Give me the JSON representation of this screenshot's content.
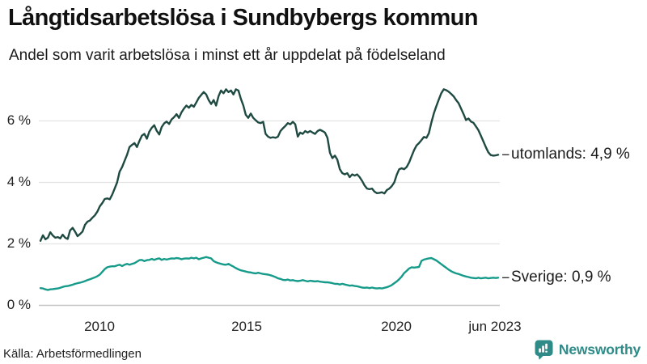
{
  "header": {
    "title": "Långtidsarbetslösa i Sundbybergs kommun",
    "subtitle": "Andel som varit arbetslösa i minst ett år uppdelat på födelseland"
  },
  "footer": {
    "source": "Källa: Arbetsförmedlingen",
    "brand": "Newsworthy"
  },
  "colors": {
    "utomlands_line": "#1f4a42",
    "sverige_line": "#169b8a",
    "gridline": "#e3e3e3",
    "baseline": "#c4c4c4",
    "text": "#1a1a1a",
    "brand_teal": "#2e8b88"
  },
  "chart_data": {
    "type": "line",
    "title": "Långtidsarbetslösa i Sundbybergs kommun",
    "subtitle": "Andel som varit arbetslösa i minst ett år uppdelat på födelseland",
    "unit": "%",
    "frequency": "monthly",
    "x_domain": [
      "2008-01",
      "2023-06"
    ],
    "ylim": [
      0,
      7.3
    ],
    "grid": "horizontal",
    "legend_position": "end-of-line",
    "x_ticks": [
      {
        "label": "2010"
      },
      {
        "label": "2015"
      },
      {
        "label": "2020"
      },
      {
        "label": "jun 2023"
      }
    ],
    "y_ticks": [
      {
        "label": "0 %",
        "value": 0
      },
      {
        "label": "2 %",
        "value": 2
      },
      {
        "label": "4 %",
        "value": 4
      },
      {
        "label": "6 %",
        "value": 6
      }
    ],
    "series": [
      {
        "name": "utomlands",
        "end_label": "utomlands: 4,9 %",
        "last_value": 4.9,
        "color": "#1f4a42",
        "values": [
          2.1,
          2.28,
          2.15,
          2.2,
          2.38,
          2.27,
          2.2,
          2.22,
          2.18,
          2.3,
          2.2,
          2.16,
          2.44,
          2.52,
          2.4,
          2.25,
          2.32,
          2.4,
          2.62,
          2.72,
          2.76,
          2.85,
          2.93,
          3.05,
          3.22,
          3.33,
          3.46,
          3.48,
          3.45,
          3.6,
          3.8,
          4.0,
          4.35,
          4.5,
          4.7,
          4.9,
          5.15,
          5.22,
          5.28,
          5.15,
          5.35,
          5.52,
          5.58,
          5.42,
          5.65,
          5.78,
          5.86,
          5.68,
          5.56,
          5.8,
          5.92,
          5.98,
          5.9,
          6.05,
          6.12,
          6.22,
          6.1,
          6.28,
          6.4,
          6.5,
          6.43,
          6.52,
          6.46,
          6.6,
          6.75,
          6.85,
          6.94,
          6.86,
          6.68,
          6.55,
          6.68,
          6.5,
          6.81,
          6.99,
          6.9,
          7.03,
          6.94,
          6.99,
          6.86,
          7.03,
          6.99,
          6.72,
          6.5,
          6.2,
          6.1,
          6.24,
          6.1,
          6.02,
          5.95,
          5.93,
          5.97,
          5.58,
          5.49,
          5.45,
          5.47,
          5.45,
          5.49,
          5.67,
          5.76,
          5.84,
          5.93,
          5.89,
          5.97,
          5.89,
          5.49,
          5.62,
          5.58,
          5.67,
          5.62,
          5.67,
          5.62,
          5.58,
          5.67,
          5.71,
          5.67,
          5.62,
          5.45,
          4.96,
          4.79,
          4.87,
          4.74,
          4.43,
          4.3,
          4.26,
          4.3,
          4.17,
          4.26,
          4.22,
          4.26,
          4.17,
          4.05,
          3.9,
          3.8,
          3.78,
          3.8,
          3.7,
          3.65,
          3.66,
          3.68,
          3.64,
          3.75,
          3.8,
          3.88,
          4.0,
          4.25,
          4.43,
          4.46,
          4.43,
          4.5,
          4.65,
          4.85,
          5.05,
          5.2,
          5.28,
          5.38,
          5.48,
          5.45,
          5.6,
          5.95,
          6.25,
          6.48,
          6.7,
          6.9,
          7.03,
          7.0,
          6.95,
          6.88,
          6.8,
          6.68,
          6.58,
          6.4,
          6.22,
          6.03,
          6.08,
          5.98,
          5.94,
          5.82,
          5.7,
          5.52,
          5.34,
          5.15,
          4.98,
          4.89,
          4.87,
          4.88,
          4.9
        ]
      },
      {
        "name": "sverige",
        "end_label": "Sverige: 0,9 %",
        "last_value": 0.9,
        "color": "#169b8a",
        "values": [
          0.56,
          0.55,
          0.52,
          0.5,
          0.52,
          0.53,
          0.54,
          0.55,
          0.57,
          0.6,
          0.62,
          0.63,
          0.65,
          0.67,
          0.7,
          0.72,
          0.74,
          0.76,
          0.79,
          0.82,
          0.85,
          0.88,
          0.91,
          0.95,
          1.0,
          1.09,
          1.18,
          1.24,
          1.26,
          1.27,
          1.27,
          1.3,
          1.32,
          1.28,
          1.32,
          1.35,
          1.32,
          1.35,
          1.37,
          1.42,
          1.47,
          1.48,
          1.44,
          1.47,
          1.48,
          1.51,
          1.48,
          1.51,
          1.53,
          1.48,
          1.51,
          1.49,
          1.51,
          1.53,
          1.52,
          1.54,
          1.53,
          1.5,
          1.52,
          1.53,
          1.52,
          1.55,
          1.53,
          1.55,
          1.5,
          1.53,
          1.55,
          1.57,
          1.55,
          1.53,
          1.44,
          1.4,
          1.37,
          1.35,
          1.33,
          1.32,
          1.35,
          1.3,
          1.26,
          1.21,
          1.17,
          1.14,
          1.12,
          1.1,
          1.08,
          1.07,
          1.05,
          1.04,
          1.06,
          1.04,
          1.02,
          1.01,
          1.0,
          0.98,
          0.95,
          0.92,
          0.88,
          0.86,
          0.83,
          0.82,
          0.84,
          0.81,
          0.82,
          0.8,
          0.79,
          0.8,
          0.82,
          0.8,
          0.78,
          0.8,
          0.79,
          0.78,
          0.79,
          0.77,
          0.76,
          0.75,
          0.75,
          0.74,
          0.72,
          0.7,
          0.7,
          0.68,
          0.7,
          0.68,
          0.66,
          0.64,
          0.65,
          0.63,
          0.62,
          0.6,
          0.58,
          0.57,
          0.58,
          0.56,
          0.58,
          0.56,
          0.55,
          0.56,
          0.55,
          0.57,
          0.59,
          0.62,
          0.66,
          0.72,
          0.78,
          0.85,
          0.94,
          1.05,
          1.12,
          1.2,
          1.24,
          1.23,
          1.24,
          1.25,
          1.45,
          1.49,
          1.51,
          1.53,
          1.54,
          1.5,
          1.46,
          1.4,
          1.34,
          1.28,
          1.22,
          1.16,
          1.11,
          1.07,
          1.04,
          1.02,
          0.99,
          0.96,
          0.94,
          0.92,
          0.9,
          0.89,
          0.88,
          0.9,
          0.88,
          0.89,
          0.9,
          0.88,
          0.89,
          0.9,
          0.89,
          0.9
        ]
      }
    ]
  }
}
